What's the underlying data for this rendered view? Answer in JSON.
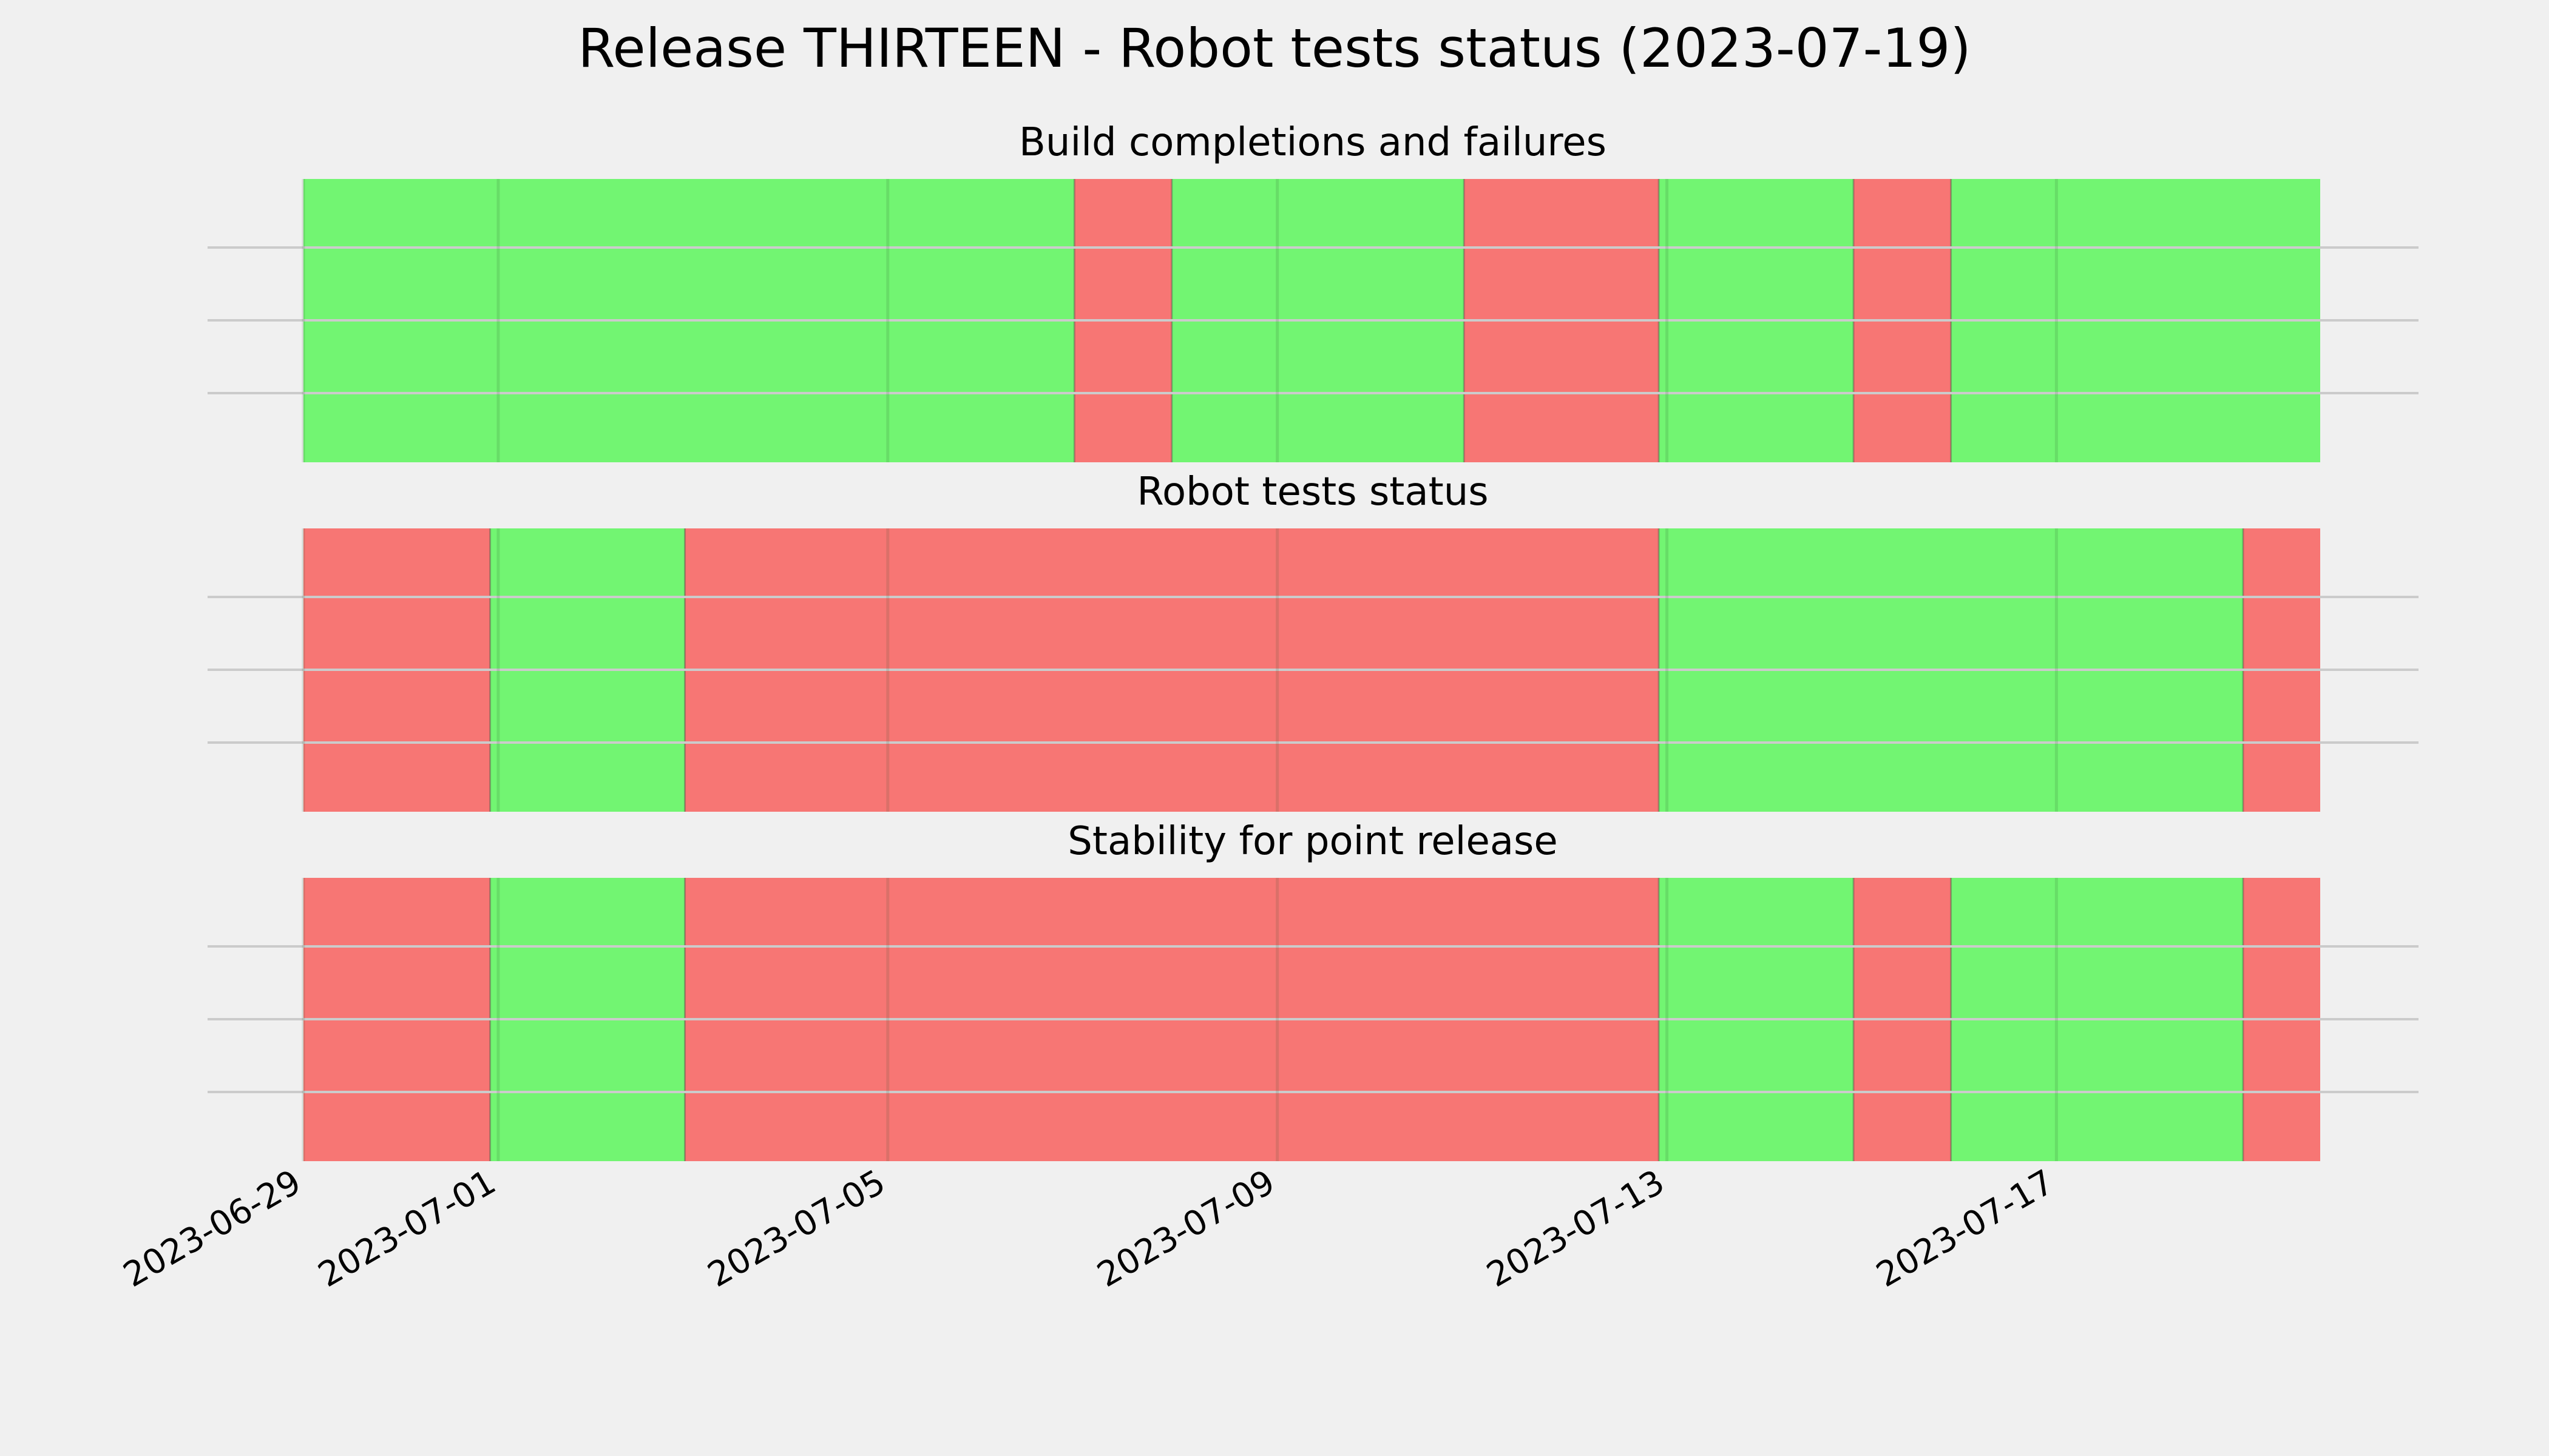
{
  "chart_data": {
    "type": "timeline",
    "title": "Release THIRTEEN - Robot tests status (2023-07-19)",
    "colors": {
      "pass": "#72f572",
      "fail": "#f77674",
      "background": "#f0f0f0"
    },
    "x_range": [
      "2023-06-29T00:00",
      "2023-07-19T17:00"
    ],
    "x_ticks": [
      "2023-06-29",
      "2023-07-01",
      "2023-07-05",
      "2023-07-09",
      "2023-07-13",
      "2023-07-17"
    ],
    "grid": true,
    "panels": [
      {
        "title": "Build completions and failures",
        "segments": [
          {
            "start": "2023-06-29T00:00",
            "end": "2023-07-06T22:00",
            "status": "pass"
          },
          {
            "start": "2023-07-06T22:00",
            "end": "2023-07-07T22:00",
            "status": "fail"
          },
          {
            "start": "2023-07-07T22:00",
            "end": "2023-07-10T22:00",
            "status": "pass"
          },
          {
            "start": "2023-07-10T22:00",
            "end": "2023-07-12T22:00",
            "status": "fail"
          },
          {
            "start": "2023-07-12T22:00",
            "end": "2023-07-14T22:00",
            "status": "pass"
          },
          {
            "start": "2023-07-14T22:00",
            "end": "2023-07-15T22:00",
            "status": "fail"
          },
          {
            "start": "2023-07-15T22:00",
            "end": "2023-07-19T17:00",
            "status": "pass"
          }
        ]
      },
      {
        "title": "Robot tests status",
        "segments": [
          {
            "start": "2023-06-29T00:00",
            "end": "2023-06-30T22:00",
            "status": "fail"
          },
          {
            "start": "2023-06-30T22:00",
            "end": "2023-07-02T22:00",
            "status": "pass"
          },
          {
            "start": "2023-07-02T22:00",
            "end": "2023-07-12T22:00",
            "status": "fail"
          },
          {
            "start": "2023-07-12T22:00",
            "end": "2023-07-18T22:00",
            "status": "pass"
          },
          {
            "start": "2023-07-18T22:00",
            "end": "2023-07-19T17:00",
            "status": "fail"
          }
        ]
      },
      {
        "title": "Stability for point release",
        "segments": [
          {
            "start": "2023-06-29T00:00",
            "end": "2023-06-30T22:00",
            "status": "fail"
          },
          {
            "start": "2023-06-30T22:00",
            "end": "2023-07-02T22:00",
            "status": "pass"
          },
          {
            "start": "2023-07-02T22:00",
            "end": "2023-07-12T22:00",
            "status": "fail"
          },
          {
            "start": "2023-07-12T22:00",
            "end": "2023-07-14T22:00",
            "status": "pass"
          },
          {
            "start": "2023-07-14T22:00",
            "end": "2023-07-15T22:00",
            "status": "fail"
          },
          {
            "start": "2023-07-15T22:00",
            "end": "2023-07-18T22:00",
            "status": "pass"
          },
          {
            "start": "2023-07-18T22:00",
            "end": "2023-07-19T17:00",
            "status": "fail"
          }
        ]
      }
    ]
  }
}
